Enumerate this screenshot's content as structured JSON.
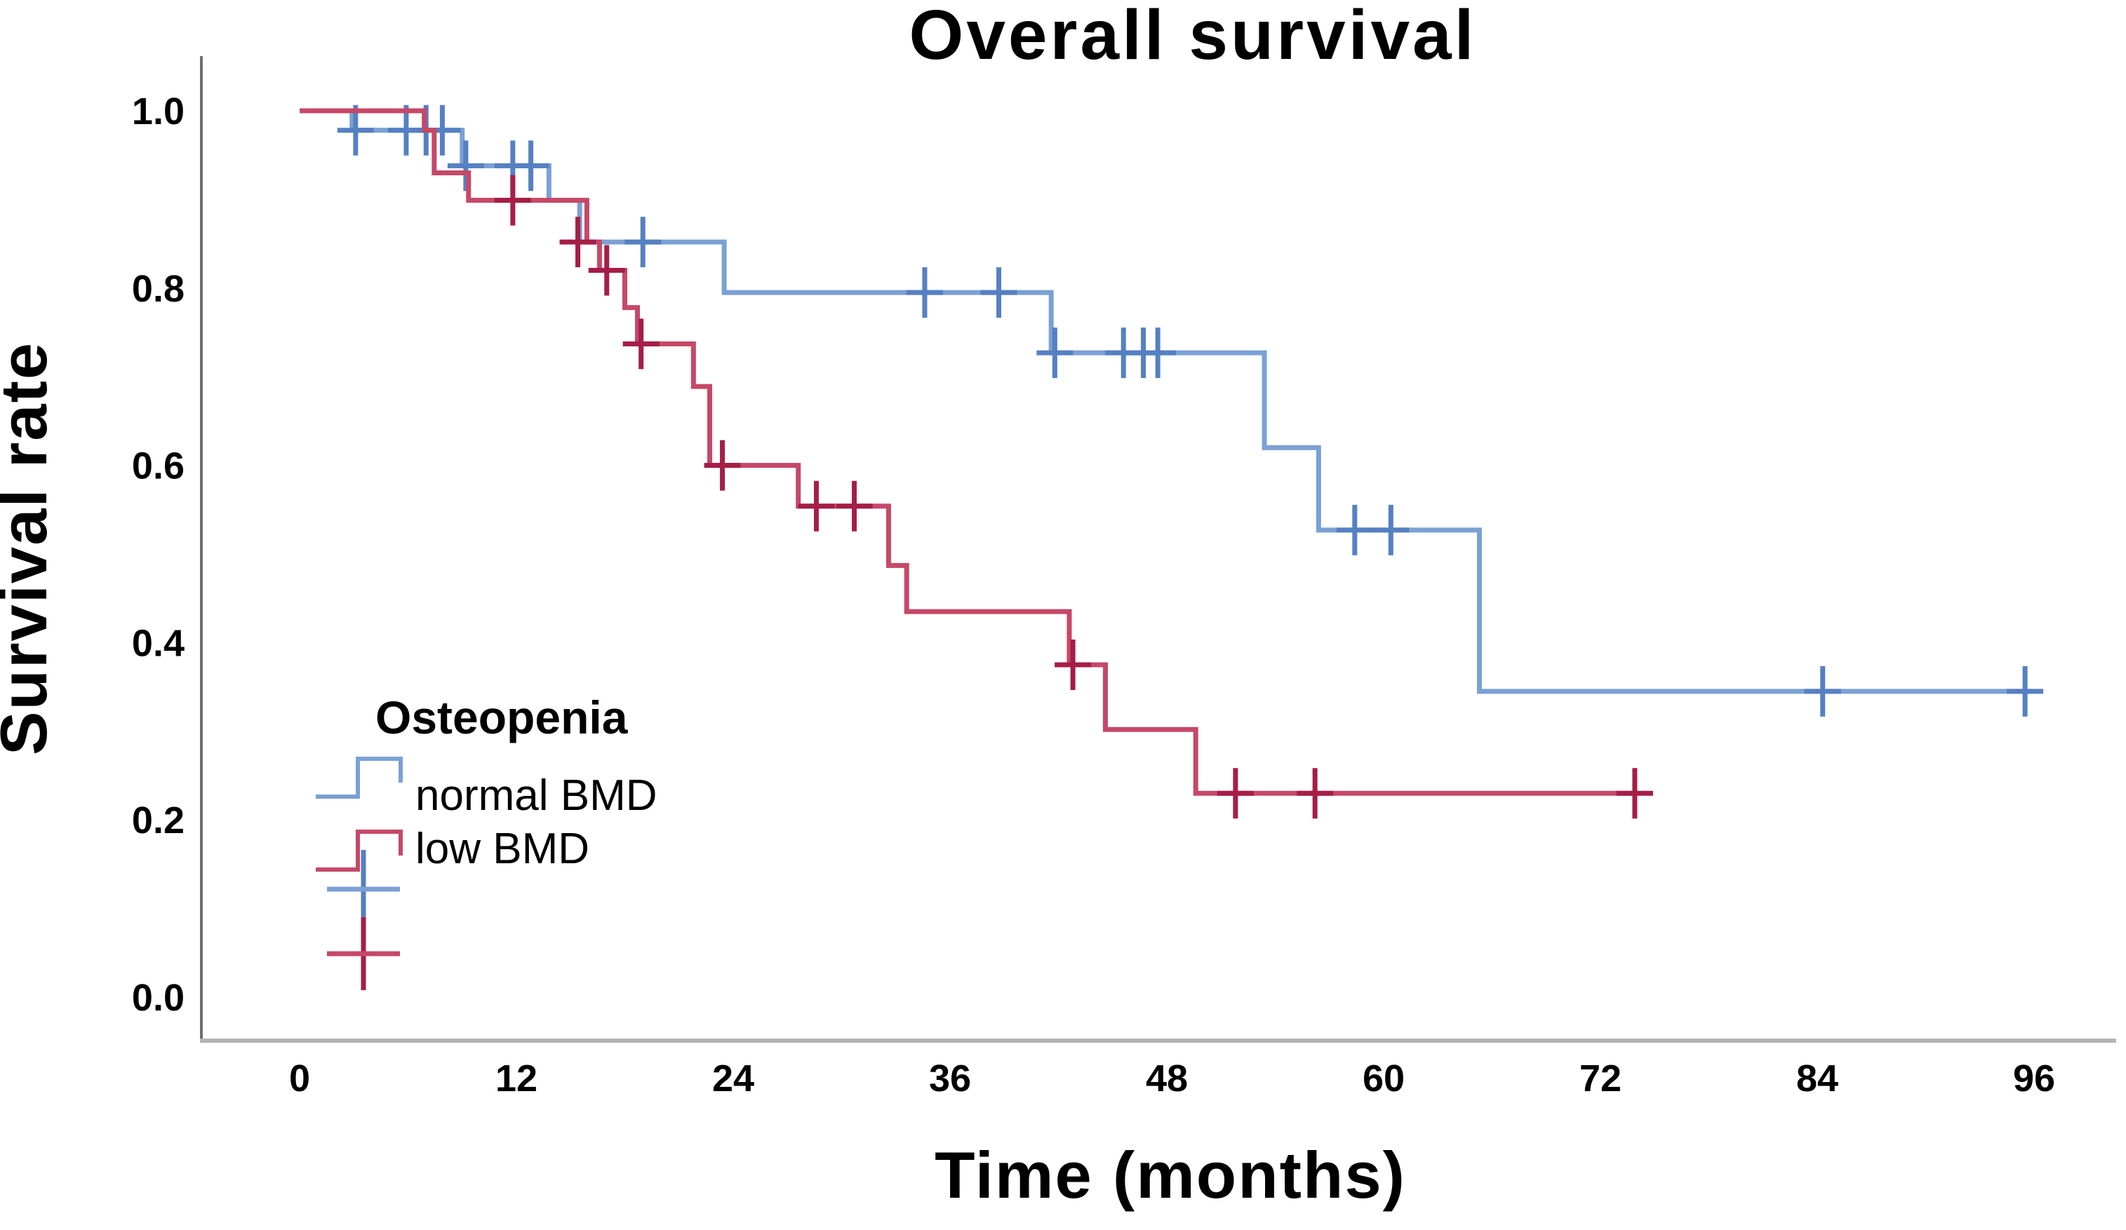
{
  "title": "Overall survival",
  "legend": {
    "title": "Osteopenia",
    "entries": [
      {
        "label": "normal BMD"
      },
      {
        "label": "low BMD"
      }
    ]
  },
  "axes": {
    "x": {
      "label": "Time (months)",
      "tick_labels": [
        "0",
        "12",
        "24",
        "36",
        "48",
        "60",
        "72",
        "84",
        "96"
      ],
      "tick_values": [
        0,
        12,
        24,
        36,
        48,
        60,
        72,
        84,
        96
      ]
    },
    "y": {
      "label": "Survival rate",
      "tick_labels": [
        "0.0",
        "0.2",
        "0.4",
        "0.6",
        "0.8",
        "1.0"
      ],
      "tick_values": [
        0,
        0.2,
        0.4,
        0.6,
        0.8,
        1.0
      ]
    }
  },
  "chart_data": {
    "type": "line",
    "subtype": "kaplan-meier-step",
    "title": "Overall survival",
    "xlabel": "Time (months)",
    "ylabel": "Survival rate",
    "xlim": [
      0,
      96
    ],
    "ylim": [
      0.0,
      1.0
    ],
    "x_ticks": [
      0,
      12,
      24,
      36,
      48,
      60,
      72,
      84,
      96
    ],
    "y_ticks": [
      0.0,
      0.2,
      0.4,
      0.6,
      0.8,
      1.0
    ],
    "grid": false,
    "legend_position": "inside-left",
    "series": [
      {
        "name": "normal BMD",
        "color": "#7BA0D4",
        "censor_color": "#5580C2",
        "steps": [
          [
            0,
            1.0
          ],
          [
            2.9,
            0.978
          ],
          [
            9.0,
            0.938
          ],
          [
            13.8,
            0.899
          ],
          [
            15.5,
            0.852
          ],
          [
            23.5,
            0.795
          ],
          [
            41.6,
            0.727
          ],
          [
            53.4,
            0.62
          ],
          [
            56.4,
            0.527
          ],
          [
            65.3,
            0.345
          ]
        ],
        "end": 96,
        "censors": [
          [
            3.1,
            0.978
          ],
          [
            5.9,
            0.978
          ],
          [
            7.0,
            0.978
          ],
          [
            7.9,
            0.978
          ],
          [
            9.2,
            0.938
          ],
          [
            11.8,
            0.938
          ],
          [
            12.8,
            0.938
          ],
          [
            19.0,
            0.852
          ],
          [
            34.6,
            0.795
          ],
          [
            38.7,
            0.795
          ],
          [
            41.8,
            0.727
          ],
          [
            45.6,
            0.727
          ],
          [
            46.7,
            0.727
          ],
          [
            47.5,
            0.727
          ],
          [
            58.4,
            0.527
          ],
          [
            60.4,
            0.527
          ],
          [
            84.3,
            0.345
          ],
          [
            95.5,
            0.345
          ]
        ]
      },
      {
        "name": "low BMD",
        "color": "#C64868",
        "censor_color": "#A51E47",
        "steps": [
          [
            0,
            1.0
          ],
          [
            6.9,
            0.978
          ],
          [
            7.45,
            0.93
          ],
          [
            9.35,
            0.899
          ],
          [
            15.9,
            0.852
          ],
          [
            16.6,
            0.82
          ],
          [
            18.0,
            0.778
          ],
          [
            18.7,
            0.737
          ],
          [
            21.8,
            0.689
          ],
          [
            22.7,
            0.6
          ],
          [
            27.6,
            0.554
          ],
          [
            32.6,
            0.487
          ],
          [
            33.6,
            0.435
          ],
          [
            42.6,
            0.375
          ],
          [
            44.6,
            0.302
          ],
          [
            49.6,
            0.23
          ]
        ],
        "end": 74,
        "censors": [
          [
            11.8,
            0.899
          ],
          [
            15.4,
            0.852
          ],
          [
            17.0,
            0.82
          ],
          [
            18.9,
            0.737
          ],
          [
            23.4,
            0.6
          ],
          [
            28.6,
            0.554
          ],
          [
            30.7,
            0.554
          ],
          [
            42.8,
            0.375
          ],
          [
            51.8,
            0.23
          ],
          [
            56.2,
            0.23
          ],
          [
            73.9,
            0.23
          ]
        ]
      }
    ]
  }
}
